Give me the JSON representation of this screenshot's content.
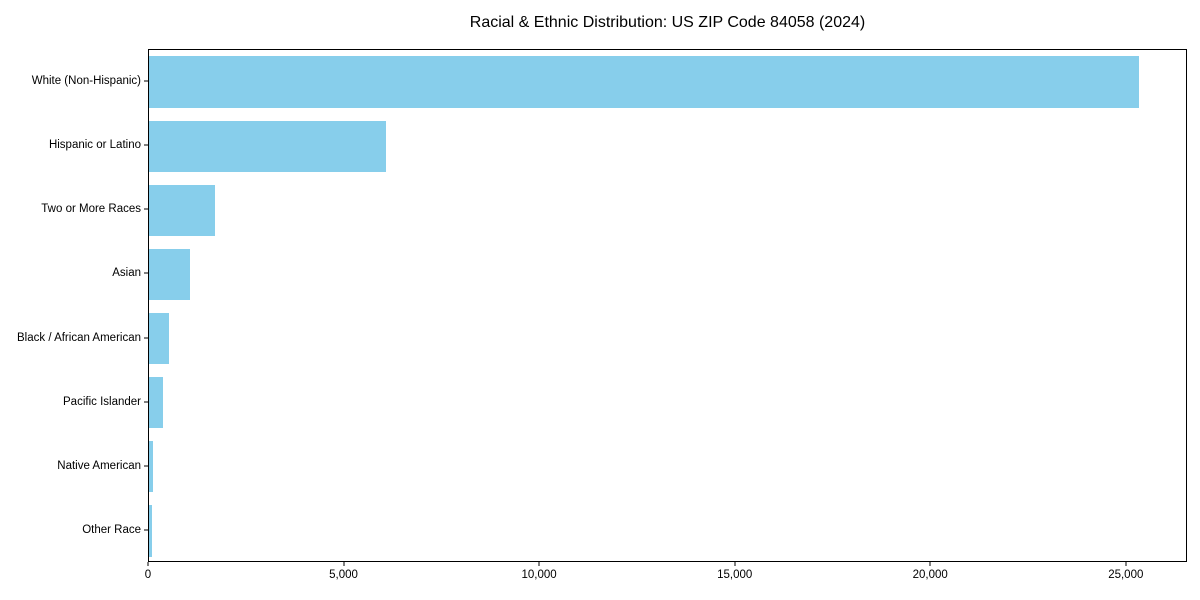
{
  "chart_data": {
    "type": "bar",
    "orientation": "horizontal",
    "title": "Racial & Ethnic Distribution: US ZIP Code 84058 (2024)",
    "categories": [
      "White (Non-Hispanic)",
      "Hispanic or Latino",
      "Two or More Races",
      "Asian",
      "Black / African American",
      "Pacific Islander",
      "Native American",
      "Other Race"
    ],
    "values": [
      25300,
      6050,
      1690,
      1050,
      510,
      360,
      105,
      85
    ],
    "xlabel": "",
    "ylabel": "",
    "xlim": [
      0,
      26565
    ],
    "xticks": [
      0,
      5000,
      10000,
      15000,
      20000,
      25000
    ],
    "xtick_labels": [
      "0",
      "5,000",
      "10,000",
      "15,000",
      "20,000",
      "25,000"
    ],
    "grid": false,
    "legend": "none",
    "bar_color": "#87CEEB",
    "frame_color": "#000000",
    "background_color": "#ffffff"
  }
}
